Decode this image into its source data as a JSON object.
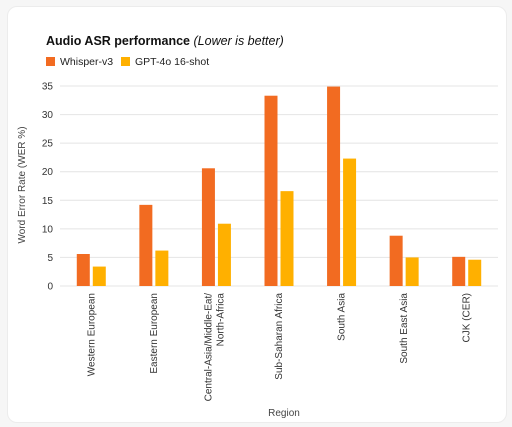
{
  "chart_data": {
    "type": "bar",
    "title": "Audio ASR performance",
    "subtitle": "(Lower is better)",
    "xlabel": "Region",
    "ylabel": "Word Error Rate (WER %)",
    "ylim": [
      0,
      35
    ],
    "yticks": [
      0,
      5,
      10,
      15,
      20,
      25,
      30,
      35
    ],
    "grid": "horizontal",
    "legend_position": "top-left",
    "categories": [
      "Western European",
      "Eastern European",
      "Central-Asia/Middle-Eat/ North-Africa",
      "Sub-Saharan Africa",
      "South Asia",
      "South East Asia",
      "CJK (CER)"
    ],
    "series": [
      {
        "name": "Whisper-v3",
        "color": "#f26b21",
        "values": [
          5.6,
          14.2,
          20.6,
          33.3,
          34.9,
          8.8,
          5.1
        ]
      },
      {
        "name": "GPT-4o 16-shot",
        "color": "#ffb000",
        "values": [
          3.4,
          6.2,
          10.9,
          16.6,
          22.3,
          5.0,
          4.6
        ]
      }
    ]
  }
}
